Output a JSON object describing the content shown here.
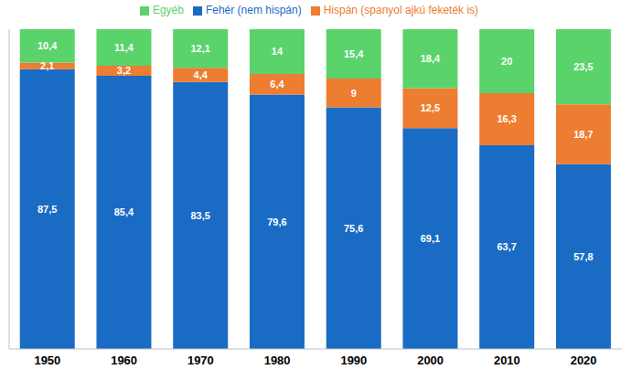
{
  "chart_data": {
    "type": "bar",
    "stacked": true,
    "data_labels": true,
    "legend": "top",
    "tick_labels": "x",
    "ylim": [
      0,
      100
    ],
    "categories": [
      "1950",
      "1960",
      "1970",
      "1980",
      "1990",
      "2000",
      "2010",
      "2020"
    ],
    "series": [
      {
        "name": "Fehér (nem hispán)",
        "color": "#1a6bc4",
        "values": [
          87.5,
          85.4,
          83.5,
          79.6,
          75.6,
          69.1,
          63.7,
          57.8
        ],
        "value_labels": [
          "87,5",
          "85,4",
          "83,5",
          "79,6",
          "75,6",
          "69,1",
          "63,7",
          "57,8"
        ]
      },
      {
        "name": "Hispán (spanyol ajkú feketék is)",
        "color": "#ed7d31",
        "values": [
          2.1,
          3.2,
          4.4,
          6.4,
          9,
          12.5,
          16.3,
          18.7
        ],
        "value_labels": [
          "2,1",
          "3,2",
          "4,4",
          "6,4",
          "9",
          "12,5",
          "16,3",
          "18,7"
        ]
      },
      {
        "name": "Egyéb",
        "color": "#5ad36a",
        "values": [
          10.4,
          11.4,
          12.1,
          14,
          15.4,
          18.4,
          20,
          23.5
        ],
        "value_labels": [
          "10,4",
          "11,4",
          "12,1",
          "14",
          "15,4",
          "18,4",
          "20",
          "23,5"
        ]
      }
    ]
  }
}
